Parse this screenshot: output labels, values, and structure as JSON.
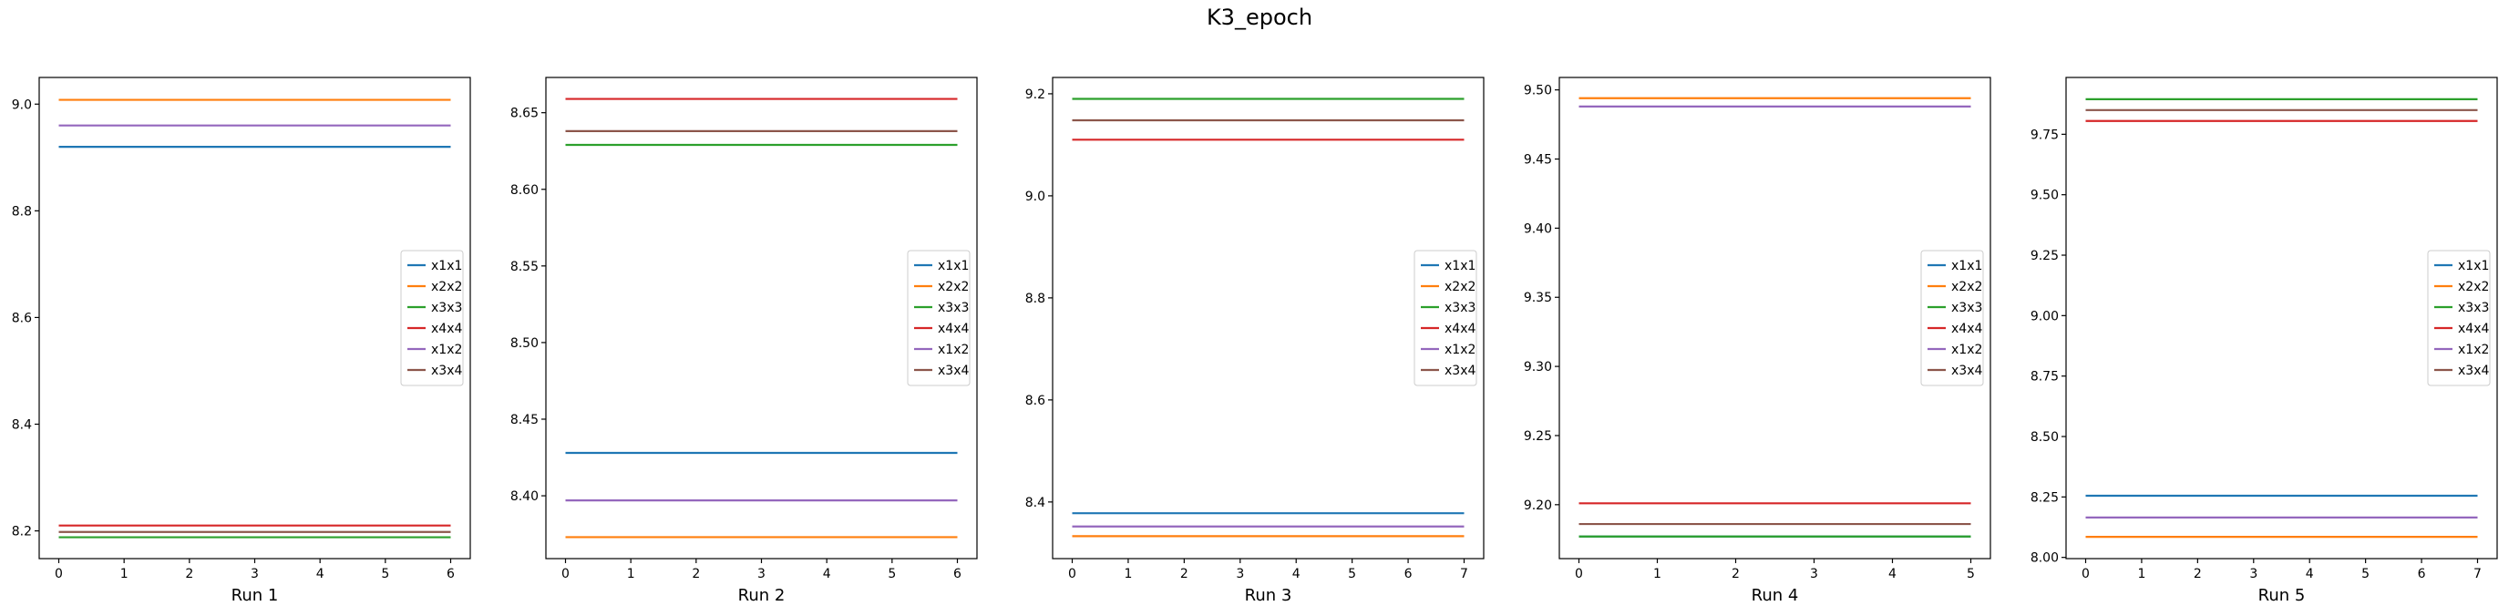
{
  "figure": {
    "title": "K3_epoch"
  },
  "chart_data": [
    {
      "type": "line",
      "xlabel": "Run 1",
      "xlim": [
        -0.3,
        6.3
      ],
      "ylim": [
        8.148,
        9.05
      ],
      "xticks": [
        0,
        1,
        2,
        3,
        4,
        5,
        6
      ],
      "yticks": [
        8.2,
        8.4,
        8.6,
        8.8,
        9.0
      ],
      "tick_decimals": 1,
      "x": [
        0,
        6
      ],
      "legend": "center-right",
      "series": [
        {
          "name": "x1x1",
          "color": "#1f77b4",
          "values": [
            8.92,
            8.92
          ]
        },
        {
          "name": "x2x2",
          "color": "#ff7f0e",
          "values": [
            9.008,
            9.008
          ]
        },
        {
          "name": "x3x3",
          "color": "#2ca02c",
          "values": [
            8.188,
            8.188
          ]
        },
        {
          "name": "x4x4",
          "color": "#d62728",
          "values": [
            8.21,
            8.21
          ]
        },
        {
          "name": "x1x2",
          "color": "#9467bd",
          "values": [
            8.96,
            8.96
          ]
        },
        {
          "name": "x3x4",
          "color": "#8c564b",
          "values": [
            8.198,
            8.198
          ]
        }
      ]
    },
    {
      "type": "line",
      "xlabel": "Run 2",
      "xlim": [
        -0.3,
        6.3
      ],
      "ylim": [
        8.359,
        8.673
      ],
      "xticks": [
        0,
        1,
        2,
        3,
        4,
        5,
        6
      ],
      "yticks": [
        8.4,
        8.45,
        8.5,
        8.55,
        8.6,
        8.65
      ],
      "tick_decimals": 2,
      "x": [
        0,
        6
      ],
      "legend": "center-right",
      "series": [
        {
          "name": "x1x1",
          "color": "#1f77b4",
          "values": [
            8.428,
            8.428
          ]
        },
        {
          "name": "x2x2",
          "color": "#ff7f0e",
          "values": [
            8.373,
            8.373
          ]
        },
        {
          "name": "x3x3",
          "color": "#2ca02c",
          "values": [
            8.629,
            8.629
          ]
        },
        {
          "name": "x4x4",
          "color": "#d62728",
          "values": [
            8.659,
            8.659
          ]
        },
        {
          "name": "x1x2",
          "color": "#9467bd",
          "values": [
            8.397,
            8.397
          ]
        },
        {
          "name": "x3x4",
          "color": "#8c564b",
          "values": [
            8.638,
            8.638
          ]
        }
      ]
    },
    {
      "type": "line",
      "xlabel": "Run 3",
      "xlim": [
        -0.35,
        7.35
      ],
      "ylim": [
        8.289,
        9.232
      ],
      "xticks": [
        0,
        1,
        2,
        3,
        4,
        5,
        6,
        7
      ],
      "yticks": [
        8.4,
        8.6,
        8.8,
        9.0,
        9.2
      ],
      "tick_decimals": 1,
      "x": [
        0,
        7
      ],
      "legend": "center-right",
      "series": [
        {
          "name": "x1x1",
          "color": "#1f77b4",
          "values": [
            8.378,
            8.378
          ]
        },
        {
          "name": "x2x2",
          "color": "#ff7f0e",
          "values": [
            8.333,
            8.333
          ]
        },
        {
          "name": "x3x3",
          "color": "#2ca02c",
          "values": [
            9.19,
            9.19
          ]
        },
        {
          "name": "x4x4",
          "color": "#d62728",
          "values": [
            9.11,
            9.11
          ]
        },
        {
          "name": "x1x2",
          "color": "#9467bd",
          "values": [
            8.352,
            8.352
          ]
        },
        {
          "name": "x3x4",
          "color": "#8c564b",
          "values": [
            9.148,
            9.148
          ]
        }
      ]
    },
    {
      "type": "line",
      "xlabel": "Run 4",
      "xlim": [
        -0.25,
        5.25
      ],
      "ylim": [
        9.161,
        9.509
      ],
      "xticks": [
        0,
        1,
        2,
        3,
        4,
        5
      ],
      "yticks": [
        9.2,
        9.25,
        9.3,
        9.35,
        9.4,
        9.45,
        9.5
      ],
      "tick_decimals": 2,
      "x": [
        0,
        5
      ],
      "legend": "center-right",
      "series": [
        {
          "name": "x1x1",
          "color": "#1f77b4",
          "values": [
            9.177,
            9.177
          ]
        },
        {
          "name": "x2x2",
          "color": "#ff7f0e",
          "values": [
            9.494,
            9.494
          ]
        },
        {
          "name": "x3x3",
          "color": "#2ca02c",
          "values": [
            9.177,
            9.177
          ]
        },
        {
          "name": "x4x4",
          "color": "#d62728",
          "values": [
            9.201,
            9.201
          ]
        },
        {
          "name": "x1x2",
          "color": "#9467bd",
          "values": [
            9.488,
            9.488
          ]
        },
        {
          "name": "x3x4",
          "color": "#8c564b",
          "values": [
            9.186,
            9.186
          ]
        }
      ]
    },
    {
      "type": "line",
      "xlabel": "Run 5",
      "xlim": [
        -0.35,
        7.35
      ],
      "ylim": [
        7.995,
        9.985
      ],
      "xticks": [
        0,
        1,
        2,
        3,
        4,
        5,
        6,
        7
      ],
      "yticks": [
        8.0,
        8.25,
        8.5,
        8.75,
        9.0,
        9.25,
        9.5,
        9.75
      ],
      "tick_decimals": 2,
      "x": [
        0,
        7
      ],
      "legend": "center-right",
      "series": [
        {
          "name": "x1x1",
          "color": "#1f77b4",
          "values": [
            8.255,
            8.255
          ]
        },
        {
          "name": "x2x2",
          "color": "#ff7f0e",
          "values": [
            8.085,
            8.085
          ]
        },
        {
          "name": "x3x3",
          "color": "#2ca02c",
          "values": [
            9.895,
            9.895
          ]
        },
        {
          "name": "x4x4",
          "color": "#d62728",
          "values": [
            9.805,
            9.805
          ]
        },
        {
          "name": "x1x2",
          "color": "#9467bd",
          "values": [
            8.165,
            8.165
          ]
        },
        {
          "name": "x3x4",
          "color": "#8c564b",
          "values": [
            9.85,
            9.85
          ]
        }
      ]
    }
  ]
}
